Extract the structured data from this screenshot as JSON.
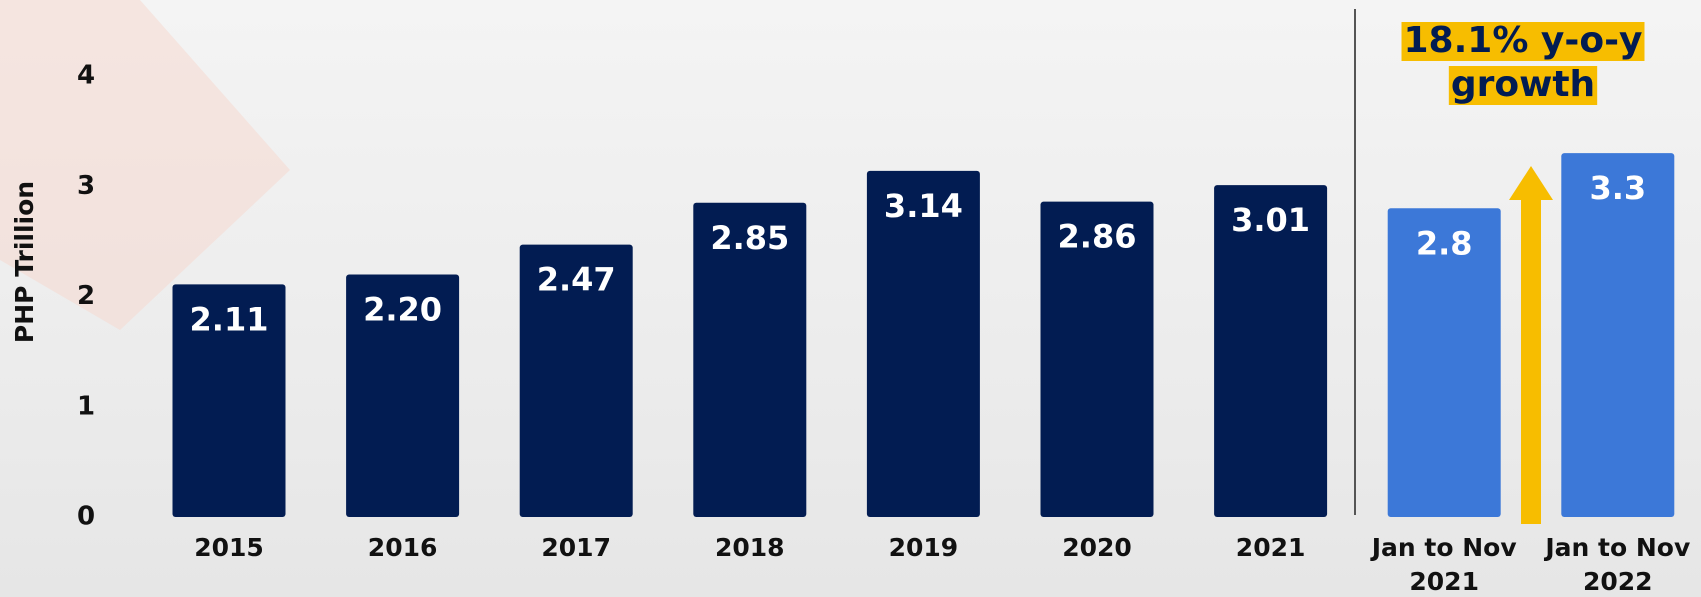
{
  "chart_data": {
    "type": "bar",
    "y_label": "PHP Trillion",
    "categories": [
      "2015",
      "2016",
      "2017",
      "2018",
      "2019",
      "2020",
      "2021",
      "Jan to Nov 2021",
      "Jan to Nov 2022"
    ],
    "values": [
      2.11,
      2.2,
      2.47,
      2.85,
      3.14,
      2.86,
      3.01,
      2.8,
      3.3
    ],
    "value_labels": [
      "2.11",
      "2.20",
      "2.47",
      "2.85",
      "3.14",
      "2.86",
      "3.01",
      "2.8",
      "3.3"
    ],
    "colors": [
      "#021c52",
      "#021c52",
      "#021c52",
      "#021c52",
      "#021c52",
      "#021c52",
      "#021c52",
      "#3c78d8",
      "#3c78d8"
    ],
    "ylim": [
      0,
      4
    ],
    "yticks": [
      0,
      1,
      2,
      3,
      4
    ],
    "grid": false,
    "annotation": [
      "18.1% y-o-y",
      "growth"
    ]
  }
}
